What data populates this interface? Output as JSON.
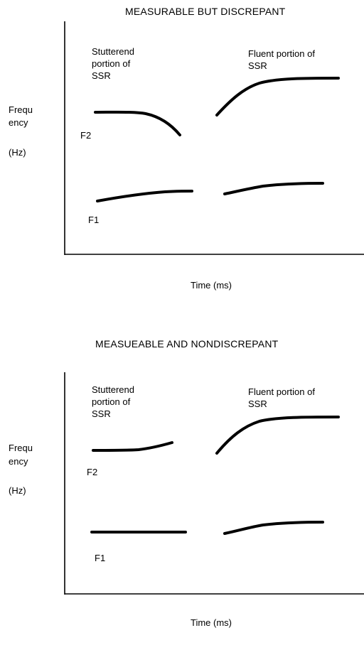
{
  "panels": [
    {
      "title": "MEASURABLE BUT DISCREPANT",
      "stuttered_label": "Stutterend\nportion of\nSSR",
      "fluent_label": "Fluent portion of\nSSR",
      "ylabel_line1": "Frequ",
      "ylabel_line2": "ency",
      "ylabel_unit": "(Hz)",
      "f2_label": "F2",
      "f1_label": "F1",
      "xlabel": "Time (ms)"
    },
    {
      "title": "MEASUEABLE AND NONDISCREPANT",
      "stuttered_label": "Stutterend\nportion of\nSSR",
      "fluent_label": "Fluent portion of\nSSR",
      "ylabel_line1": "Frequ",
      "ylabel_line2": "ency",
      "ylabel_unit": "(Hz)",
      "f2_label": "F2",
      "f1_label": "F1",
      "xlabel": "Time (ms)"
    }
  ]
}
